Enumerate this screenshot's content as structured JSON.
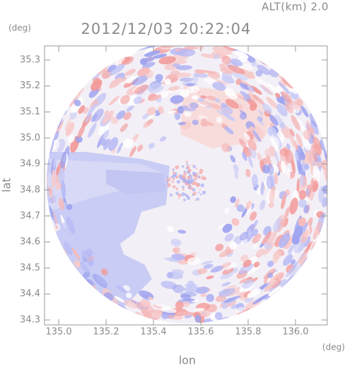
{
  "chart_data": {
    "type": "radar-image",
    "title": "2012/12/03 20:22:04",
    "subtitle": "ALT(km) 2.0",
    "x_label": "lon",
    "y_label": "lat",
    "x_unit": "(deg)",
    "y_unit": "(deg)",
    "xlim": [
      134.94,
      136.134
    ],
    "ylim": [
      34.281,
      35.354
    ],
    "xticks": [
      {
        "value": 135,
        "label": "135.0"
      },
      135.2,
      135.4,
      135.6,
      135.8,
      {
        "value": 136,
        "label": "136.0"
      }
    ],
    "yticks": [
      34.3,
      34.4,
      34.5,
      34.6,
      34.7,
      34.8,
      34.9,
      {
        "value": 35,
        "label": "35.0"
      },
      35.1,
      35.2,
      35.3
    ]
  }
}
